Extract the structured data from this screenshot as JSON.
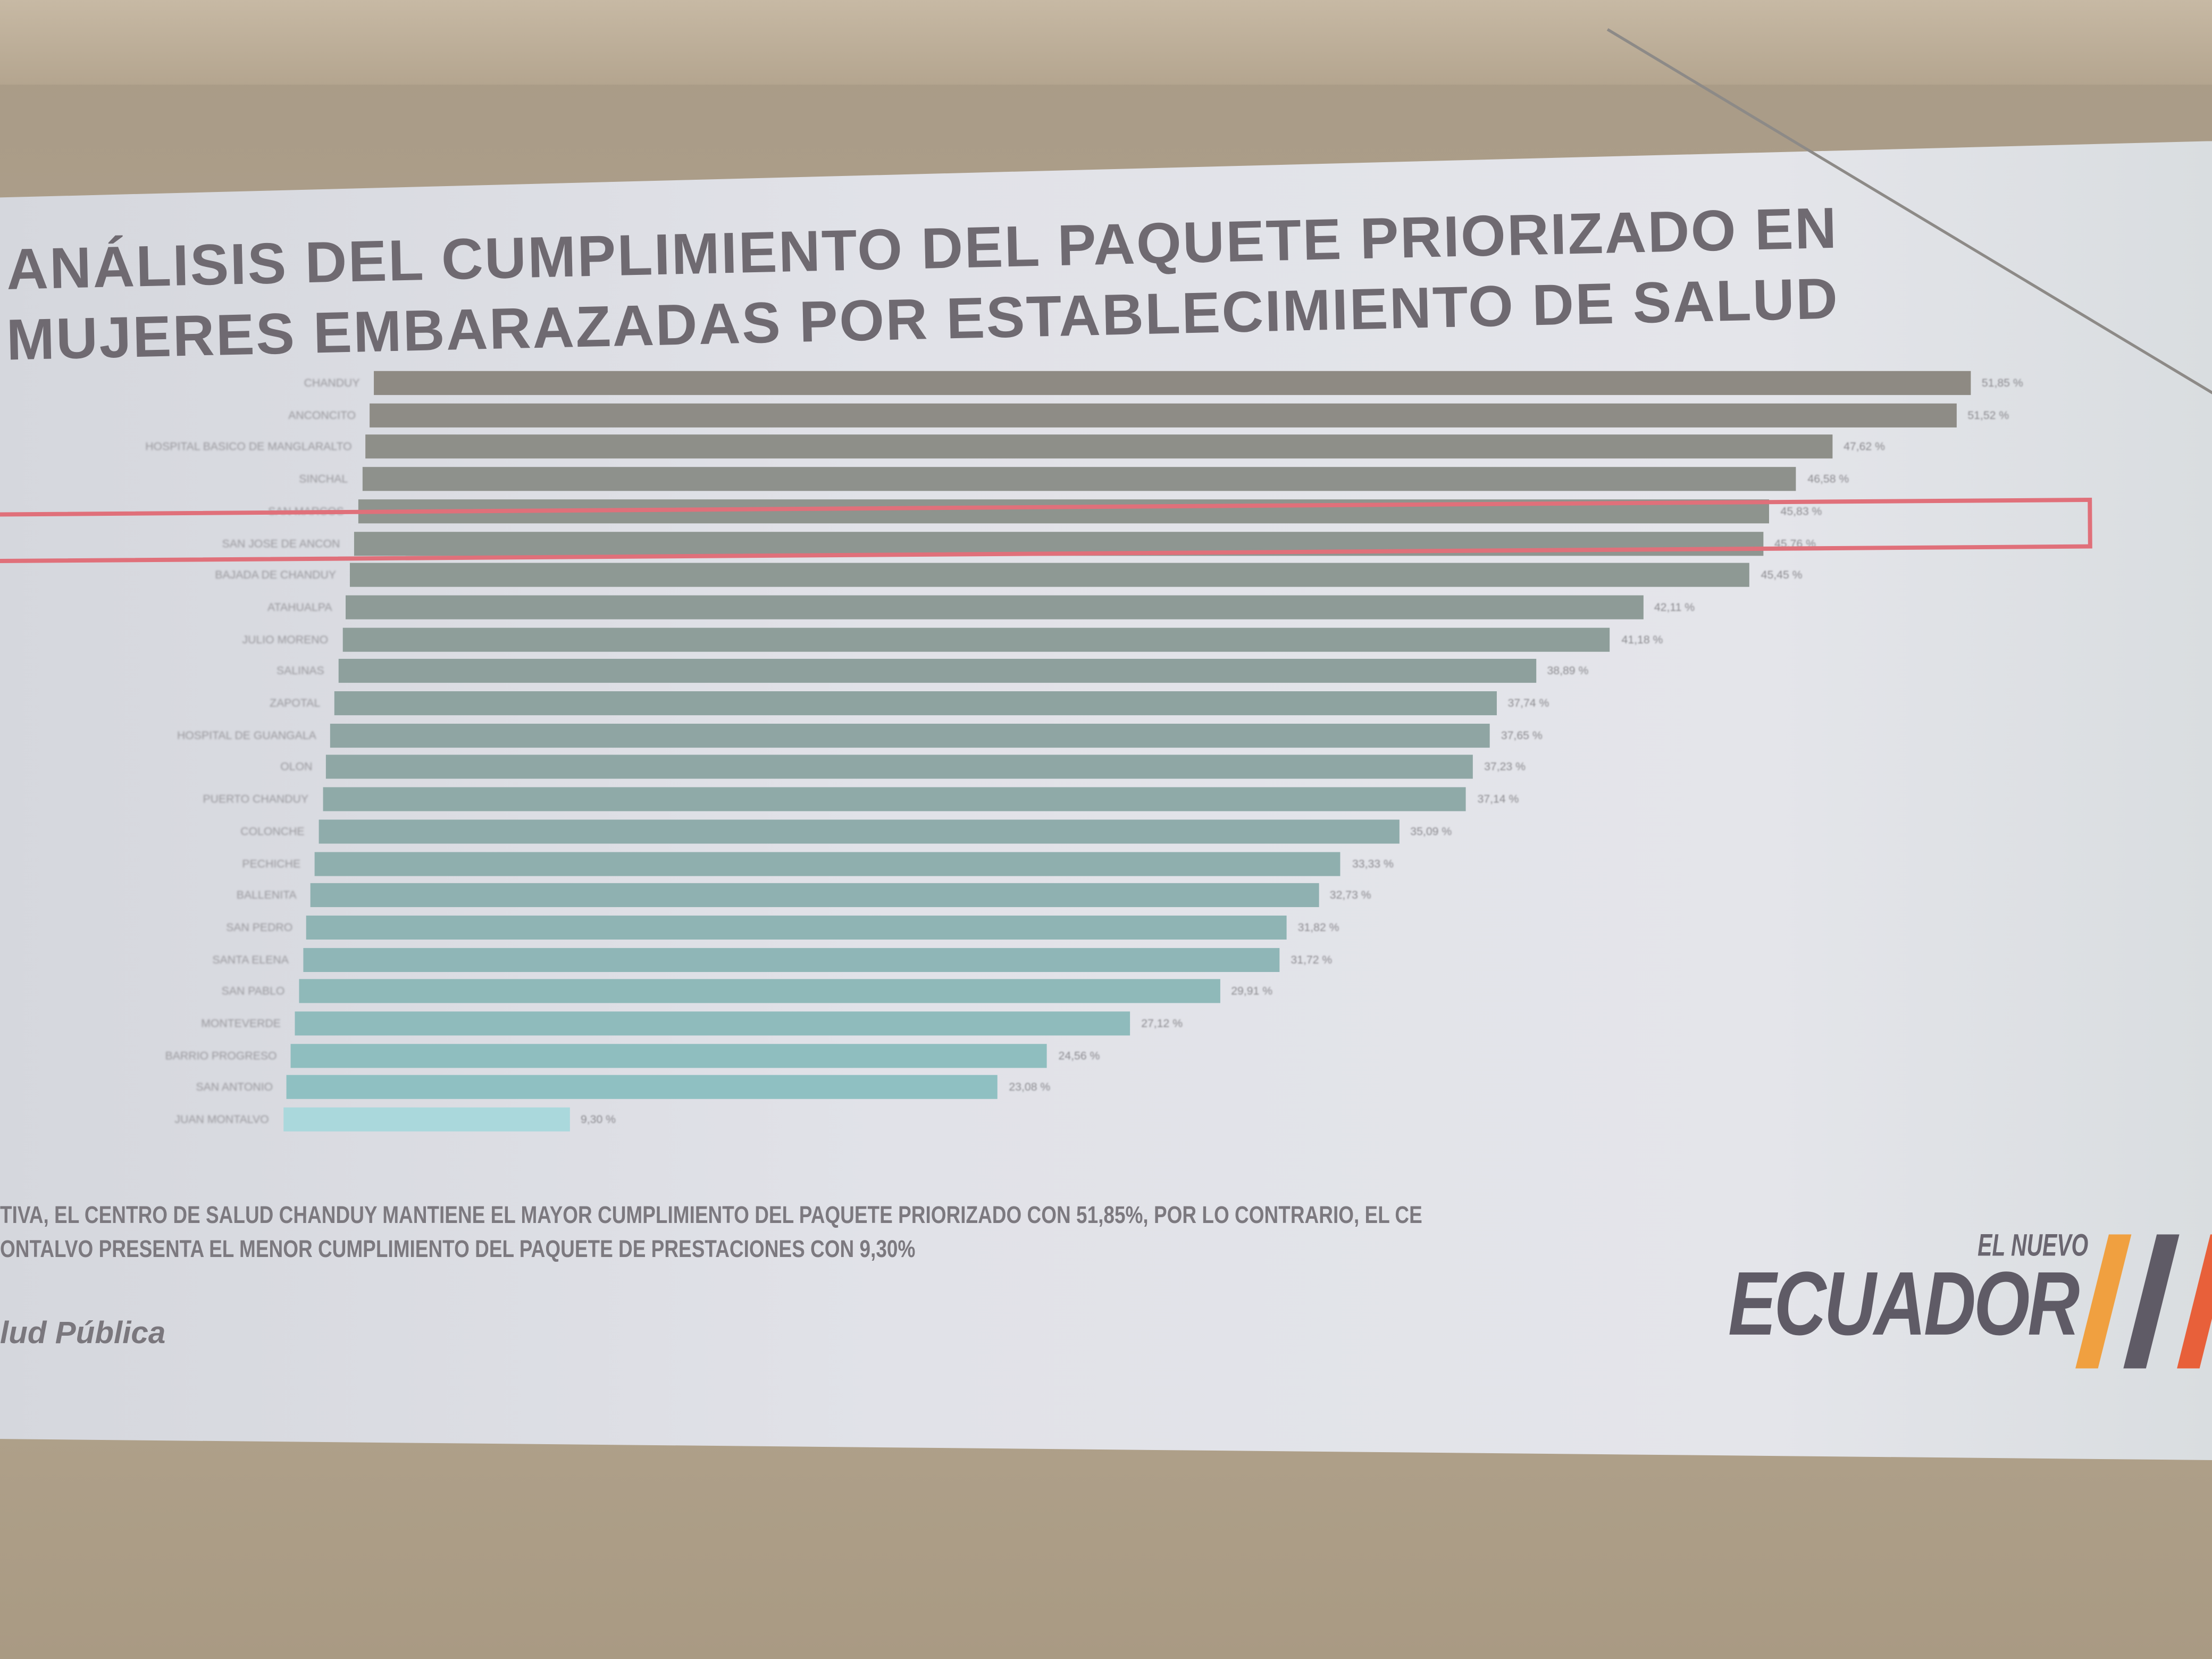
{
  "slide": {
    "title_line1": "ANÁLISIS DEL CUMPLIMIENTO DEL PAQUETE PRIORIZADO EN",
    "title_line2": "MUJERES EMBARAZADAS POR ESTABLECIMIENTO DE SALUD",
    "footer_line1": "TIVA, EL CENTRO DE SALUD CHANDUY MANTIENE EL MAYOR CUMPLIMIENTO DEL PAQUETE PRIORIZADO CON 51,85%, POR LO CONTRARIO, EL CE",
    "footer_line2": "ONTALVO PRESENTA EL MENOR CUMPLIMIENTO DEL PAQUETE DE PRESTACIONES CON 9,30%",
    "source": "lud Pública",
    "logo_small": "EL NUEVO",
    "logo_big": "ECUADOR"
  },
  "colors": {
    "bar_top": "#8e8a83",
    "bar_bottom": "#8fc0c2",
    "bar_last": "#aad8dc",
    "highlight": "#e0707a",
    "logo_stripes": [
      "#f0a040",
      "#5f5b66",
      "#e8603a"
    ]
  },
  "chart_data": {
    "type": "bar",
    "orientation": "horizontal",
    "categories": [
      "CHANDUY",
      "ANCONCITO",
      "HOSPITAL BASICO DE MANGLARALTO",
      "SINCHAL",
      "SAN MARCOS",
      "SAN JOSE DE ANCON",
      "BAJADA DE CHANDUY",
      "ATAHUALPA",
      "JULIO MORENO",
      "SALINAS",
      "ZAPOTAL",
      "HOSPITAL DE GUANGALA",
      "OLON",
      "PUERTO CHANDUY",
      "COLONCHE",
      "PECHICHE",
      "BALLENITA",
      "SAN PEDRO",
      "SANTA ELENA",
      "SAN PABLO",
      "MONTEVERDE",
      "BARRIO PROGRESO",
      "SAN ANTONIO",
      "JUAN MONTALVO"
    ],
    "values": [
      51.85,
      51.52,
      47.62,
      46.58,
      45.83,
      45.76,
      45.45,
      42.11,
      41.18,
      38.89,
      37.74,
      37.65,
      37.23,
      37.14,
      35.09,
      33.33,
      32.73,
      31.82,
      31.72,
      29.91,
      27.12,
      24.56,
      23.08,
      9.3
    ],
    "value_labels": [
      "51,85 %",
      "51,52 %",
      "47,62 %",
      "46,58 %",
      "45,83 %",
      "45,76 %",
      "45,45 %",
      "42,11 %",
      "41,18 %",
      "38,89 %",
      "37,74 %",
      "37,65 %",
      "37,23 %",
      "37,14 %",
      "35,09 %",
      "33,33 %",
      "32,73 %",
      "31,82 %",
      "31,72 %",
      "29,91 %",
      "27,12 %",
      "24,56 %",
      "23,08 %",
      "9,30 %"
    ],
    "highlighted_category": "SAN JOSE DE ANCON",
    "xlim": [
      0,
      52
    ],
    "grid": false,
    "legend": "none"
  }
}
